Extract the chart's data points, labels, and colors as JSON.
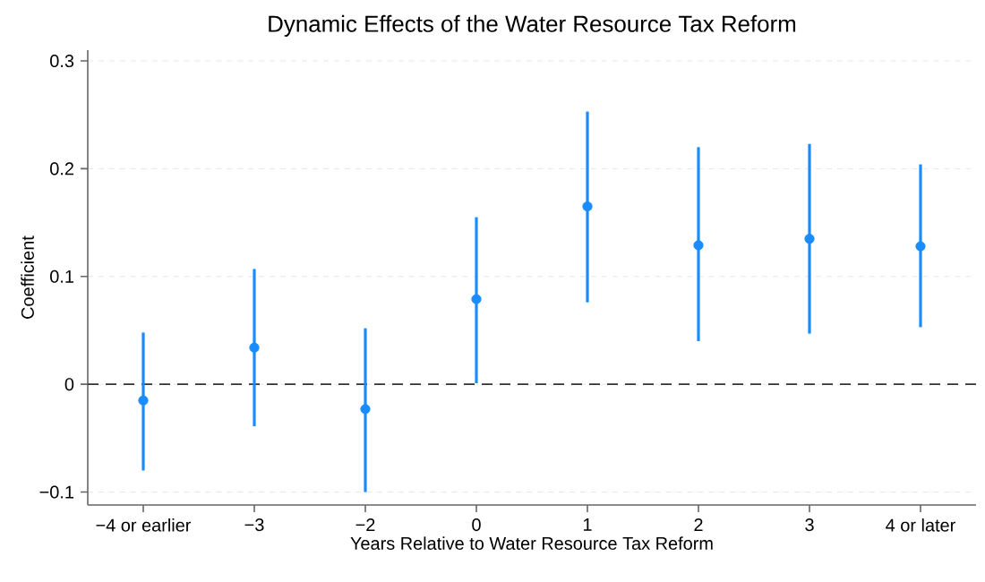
{
  "chart_data": {
    "type": "scatter",
    "title": "Dynamic Effects of the Water Resource Tax Reform",
    "xlabel": "Years Relative to Water Resource Tax Reform",
    "ylabel": "Coefficient",
    "categories": [
      "−4 or earlier",
      "−3",
      "−2",
      "0",
      "1",
      "2",
      "3",
      "4 or later"
    ],
    "series": [
      {
        "color": "#1a8cff",
        "values": [
          -0.015,
          0.034,
          -0.023,
          0.079,
          0.165,
          0.129,
          0.135,
          0.128
        ],
        "errors": [
          [
            -0.08,
            0.048
          ],
          [
            -0.039,
            0.107
          ],
          [
            -0.1,
            0.052
          ],
          [
            0.001,
            0.155
          ],
          [
            0.076,
            0.253
          ],
          [
            0.04,
            0.22
          ],
          [
            0.047,
            0.223
          ],
          [
            0.053,
            0.204
          ]
        ]
      }
    ],
    "ylim": [
      -0.112,
      0.31
    ],
    "yticks": [
      {
        "value": -0.1,
        "label": "−0.1"
      },
      0,
      0.1,
      0.2,
      0.3
    ],
    "grid": "y",
    "marker": "circle",
    "ref_lines": [
      {
        "axis": "y",
        "value": 0,
        "color": "#333333",
        "line_style": "dashed"
      }
    ]
  }
}
